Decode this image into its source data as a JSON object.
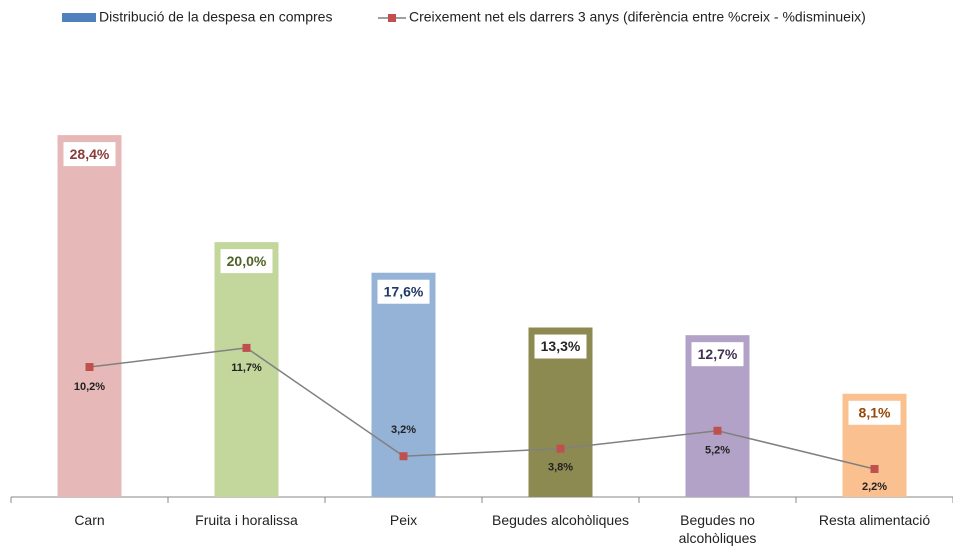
{
  "chart_data": {
    "type": "bar-line",
    "categories": [
      "Carn",
      "Fruita i horalissa",
      "Peix",
      "Begudes alcohòliques",
      "Begudes no alcohòliques",
      "Resta alimentació"
    ],
    "series": [
      {
        "name": "Distribució de la despesa en compres",
        "type": "bar",
        "color": "#4f81bd",
        "colors": [
          "#e6b9b8",
          "#c3d69b",
          "#95b3d7",
          "#8c8a50",
          "#b3a2c7",
          "#fac090"
        ],
        "label_colors": [
          "#8b3a3a",
          "#4f6228",
          "#1f3864",
          "#262626",
          "#403152",
          "#974706"
        ],
        "values": [
          28.4,
          20.0,
          17.6,
          13.3,
          12.7,
          8.1
        ],
        "value_labels": [
          "28,4%",
          "20,0%",
          "17,6%",
          "13,3%",
          "12,7%",
          "8,1%"
        ]
      },
      {
        "name": "Creixement net els darrers 3 anys (diferència entre %creix - %disminueix)",
        "type": "line",
        "color": "#808080",
        "marker_color": "#c0504d",
        "values": [
          10.2,
          11.7,
          3.2,
          3.8,
          5.2,
          2.2
        ],
        "value_labels": [
          "10,2%",
          "11,7%",
          "3,2%",
          "3,8%",
          "5,2%",
          "2,2%"
        ]
      }
    ],
    "ylim": [
      0,
      35
    ]
  }
}
